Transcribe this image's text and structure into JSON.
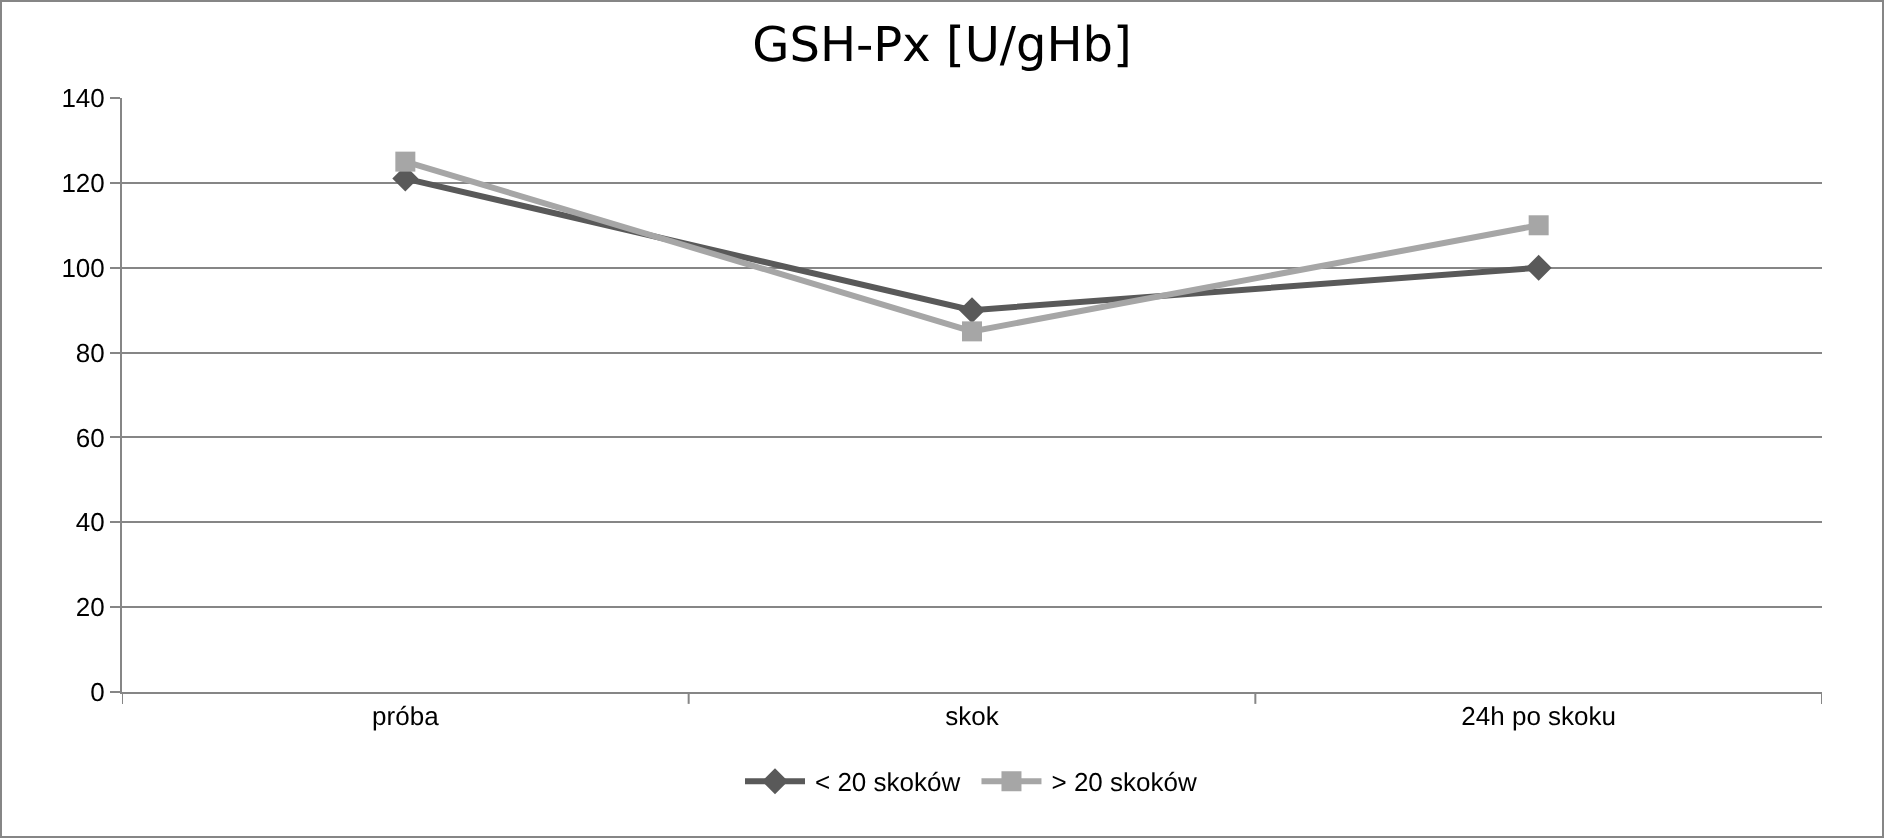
{
  "chart_data": {
    "type": "line",
    "title": "GSH-Px [U/gHb]",
    "categories": [
      "próba",
      "skok",
      "24h po skoku"
    ],
    "series": [
      {
        "name": "< 20 skoków",
        "color": "#595959",
        "marker": "diamond",
        "values": [
          121,
          90,
          100
        ]
      },
      {
        "name": "> 20 skoków",
        "color": "#a6a6a6",
        "marker": "square",
        "values": [
          125,
          85,
          110
        ]
      }
    ],
    "ylim": [
      0,
      140
    ],
    "yticks": [
      0,
      20,
      40,
      60,
      80,
      100,
      120,
      140
    ],
    "grid": "y",
    "legend": "bottom",
    "line_style": "solid"
  }
}
